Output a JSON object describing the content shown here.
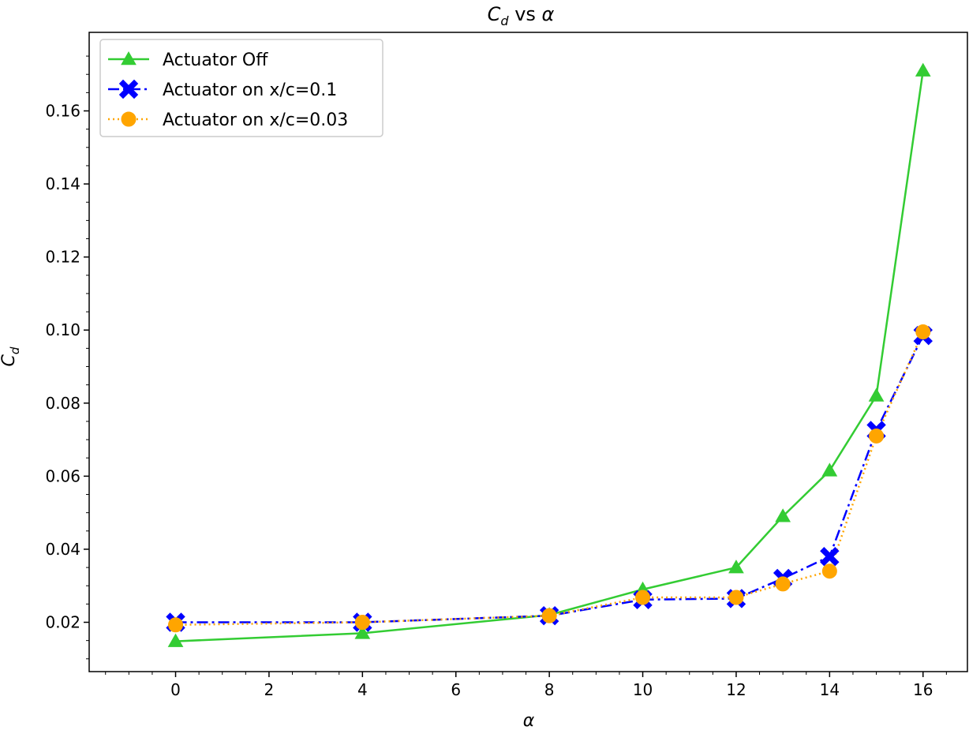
{
  "chart_data": {
    "type": "line",
    "title": "C_d vs α",
    "title_parts": {
      "symbol": "C",
      "subscript": "d",
      "rest": " vs ",
      "alpha": "α"
    },
    "xlabel": "α",
    "ylabel": "C_d",
    "ylabel_parts": {
      "symbol": "C",
      "subscript": "d"
    },
    "xlim": [
      -1.85,
      16.95
    ],
    "ylim": [
      0.0065,
      0.1815
    ],
    "xticks": [
      0,
      2,
      4,
      6,
      8,
      10,
      12,
      14,
      16
    ],
    "xtick_labels": [
      "0",
      "2",
      "4",
      "6",
      "8",
      "10",
      "12",
      "14",
      "16"
    ],
    "yticks": [
      0.02,
      0.04,
      0.06,
      0.08,
      0.1,
      0.12,
      0.14,
      0.16
    ],
    "ytick_labels": [
      "0.02",
      "0.04",
      "0.06",
      "0.08",
      "0.10",
      "0.12",
      "0.14",
      "0.16"
    ],
    "grid": false,
    "legend_position": "top-left",
    "x": [
      0,
      4,
      8,
      10,
      12,
      13,
      14,
      15,
      16
    ],
    "series": [
      {
        "name": "Actuator Off",
        "color": "#33cc33",
        "linestyle": "solid",
        "marker": "triangle",
        "values": [
          0.0148,
          0.017,
          0.022,
          0.029,
          0.035,
          0.049,
          0.0615,
          0.082,
          0.171
        ]
      },
      {
        "name": "Actuator on x/c=0.1",
        "color": "#0000ff",
        "linestyle": "dashdot",
        "marker": "x-filled",
        "values": [
          0.02,
          0.02,
          0.0218,
          0.0262,
          0.0265,
          0.032,
          0.038,
          0.0725,
          0.0985
        ]
      },
      {
        "name": "Actuator on x/c=0.03",
        "color": "#ffa500",
        "linestyle": "dotted",
        "marker": "circle",
        "values": [
          0.0193,
          0.02,
          0.0218,
          0.0268,
          0.0268,
          0.0305,
          0.034,
          0.071,
          0.0995
        ]
      }
    ]
  }
}
